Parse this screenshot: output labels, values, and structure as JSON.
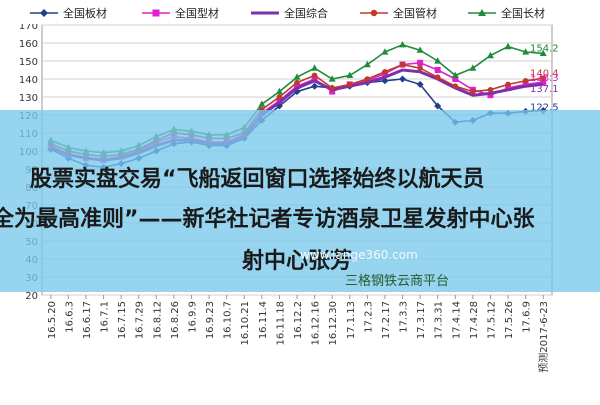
{
  "chart_data": {
    "type": "line",
    "ylim": [
      20,
      170
    ],
    "yticks": [
      20,
      30,
      40,
      50,
      60,
      70,
      80,
      90,
      100,
      110,
      120,
      130,
      140,
      150,
      160,
      170
    ],
    "categories": [
      "16.5.20",
      "16.6.3",
      "16.6.17",
      "16.7.1",
      "16.7.15",
      "16.7.29",
      "16.8.12",
      "16.8.26",
      "16.9.9",
      "16.9.23",
      "16.10.7",
      "16.10.21",
      "16.11.4",
      "16.11.18",
      "16.12.2",
      "16.12.16",
      "16.12.30",
      "17.1.13",
      "17.2.3",
      "17.2.17",
      "17.3.3",
      "17.3.17",
      "17.3.31",
      "17.4.14",
      "17.4.28",
      "17.5.12",
      "17.5.26",
      "17.6.9",
      "预测2017-6-23"
    ],
    "series": [
      {
        "name": "全国板材",
        "color": "#1f3f8f",
        "marker": "diamond",
        "values": [
          101,
          96,
          92,
          91,
          93,
          96,
          100,
          104,
          105,
          103,
          103,
          107,
          117,
          125,
          133,
          136,
          135,
          136,
          138,
          139,
          140,
          137,
          125,
          116,
          117,
          121,
          121,
          122,
          122.5
        ]
      },
      {
        "name": "全国型材",
        "color": "#e020d0",
        "marker": "square",
        "values": [
          103,
          98,
          96,
          95,
          97,
          100,
          105,
          108,
          107,
          105,
          105,
          109,
          121,
          128,
          136,
          140,
          133,
          137,
          139,
          143,
          148,
          149,
          145,
          140,
          134,
          131,
          135,
          137,
          138.3
        ]
      },
      {
        "name": "全国综合",
        "color": "#7f2fa8",
        "marker": "none",
        "values": [
          102,
          98,
          96,
          95,
          96,
          99,
          103,
          106,
          106,
          104,
          104,
          108,
          120,
          127,
          135,
          139,
          134,
          136,
          138,
          141,
          145,
          144,
          140,
          135,
          131,
          132,
          134,
          136,
          137.1
        ]
      },
      {
        "name": "全国管材",
        "color": "#c0392b",
        "marker": "circle",
        "values": [
          104,
          100,
          98,
          97,
          98,
          101,
          106,
          110,
          109,
          107,
          107,
          110,
          123,
          130,
          138,
          142,
          135,
          137,
          140,
          144,
          148,
          146,
          141,
          136,
          133,
          134,
          137,
          139,
          140.4
        ]
      },
      {
        "name": "全国长材",
        "color": "#1e8c3a",
        "marker": "triangle",
        "values": [
          106,
          102,
          100,
          99,
          100,
          103,
          108,
          112,
          111,
          109,
          109,
          113,
          126,
          133,
          141,
          146,
          140,
          142,
          148,
          155,
          159,
          156,
          150,
          142,
          146,
          153,
          158,
          155,
          154.2
        ]
      }
    ],
    "end_labels": [
      "154.2",
      "140.4",
      "138.3",
      "137.1",
      "122.5"
    ]
  },
  "overlay": {
    "line1": "股票实盘交易“飞船返回窗口选择始终以航天员",
    "line2": "全为最高准则”——新华社记者专访酒泉卫星发射中心张",
    "line3": "射中心张芳"
  },
  "watermark": {
    "site": "www.lange360.com",
    "platform": "三格钢铁云商平台"
  }
}
